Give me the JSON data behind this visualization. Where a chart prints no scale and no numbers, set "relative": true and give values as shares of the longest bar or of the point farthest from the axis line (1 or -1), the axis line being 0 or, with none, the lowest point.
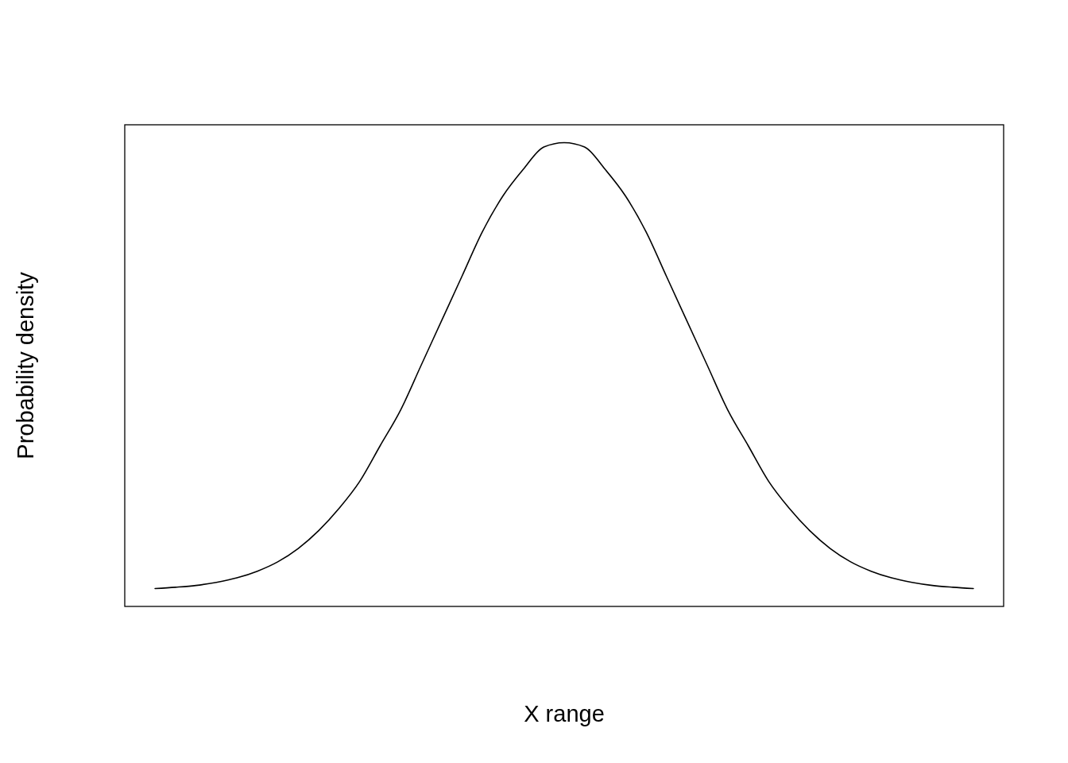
{
  "chart_data": {
    "type": "line",
    "xlabel": "X range",
    "ylabel": "Probability density",
    "relative": true,
    "line_style": "solid",
    "categories": [
      null,
      null,
      null,
      null,
      null,
      null,
      null,
      null,
      null,
      null,
      null,
      null,
      null,
      null,
      null,
      null,
      null,
      null,
      null,
      null,
      null,
      null,
      null,
      null,
      null,
      null,
      null,
      null,
      null,
      null,
      null,
      null,
      null,
      null,
      null,
      null,
      null,
      null,
      null,
      null,
      null
    ],
    "series": [
      {
        "color": "#000000",
        "values": [
          0,
          0.003,
          0.007,
          0.014,
          0.024,
          0.039,
          0.06,
          0.09,
          0.13,
          0.18,
          0.24,
          0.32,
          0.4,
          0.5,
          0.6,
          0.7,
          0.8,
          0.88,
          0.94,
          0.99,
          1,
          0.99,
          0.94,
          0.88,
          0.8,
          0.7,
          0.6,
          0.5,
          0.4,
          0.32,
          0.24,
          0.18,
          0.13,
          0.09,
          0.06,
          0.039,
          0.024,
          0.014,
          0.007,
          0.003,
          0
        ]
      }
    ]
  }
}
